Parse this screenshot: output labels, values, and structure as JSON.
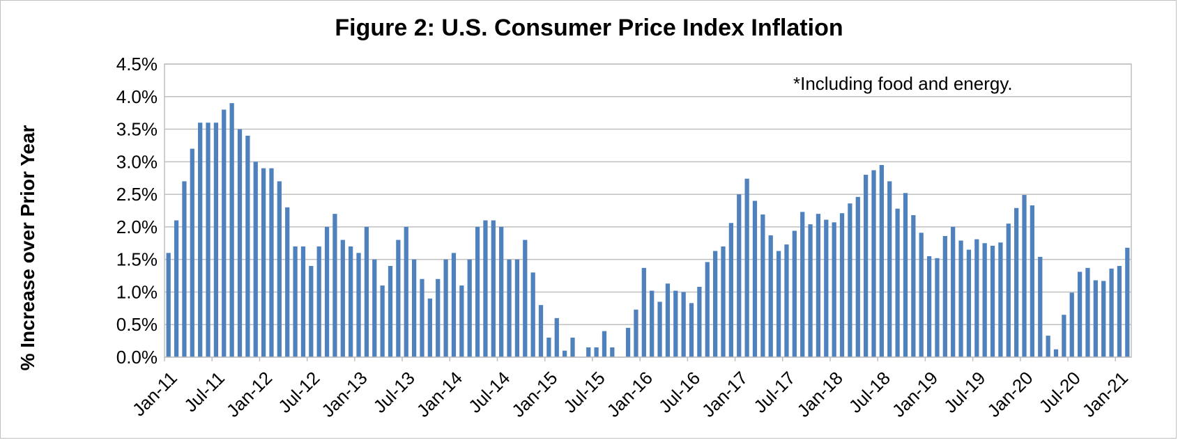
{
  "colors": {
    "bar": "#4f81bd",
    "grid": "#bfbfbf"
  },
  "chart_data": {
    "type": "bar",
    "title": "Figure 2: U.S. Consumer Price Index Inflation",
    "xlabel": "",
    "ylabel": "% Increase over Prior Year",
    "annotation": "*Including food and energy.",
    "ylim": [
      0,
      4.5
    ],
    "y_ticks": [
      "0.0%",
      "0.5%",
      "1.0%",
      "1.5%",
      "2.0%",
      "2.5%",
      "3.0%",
      "3.5%",
      "4.0%",
      "4.5%"
    ],
    "x_tick_labels": [
      "Jan-11",
      "Jul-11",
      "Jan-12",
      "Jul-12",
      "Jan-13",
      "Jul-13",
      "Jan-14",
      "Jul-14",
      "Jan-15",
      "Jul-15",
      "Jan-16",
      "Jul-16",
      "Jan-17",
      "Jul-17",
      "Jan-18",
      "Jul-18",
      "Jan-19",
      "Jul-19",
      "Jan-20",
      "Jul-20",
      "Jan-21"
    ],
    "grid": true,
    "legend": "none",
    "start": "Jan-11",
    "values": [
      1.6,
      2.1,
      2.7,
      3.2,
      3.6,
      3.6,
      3.6,
      3.8,
      3.9,
      3.5,
      3.4,
      3.0,
      2.9,
      2.9,
      2.7,
      2.3,
      1.7,
      1.7,
      1.4,
      1.7,
      2.0,
      2.2,
      1.8,
      1.7,
      1.6,
      2.0,
      1.5,
      1.1,
      1.4,
      1.8,
      2.0,
      1.5,
      1.2,
      0.9,
      1.2,
      1.5,
      1.6,
      1.1,
      1.5,
      2.0,
      2.1,
      2.1,
      2.0,
      1.5,
      1.5,
      1.8,
      1.3,
      0.8,
      0.3,
      0.6,
      0.1,
      0.3,
      0.0,
      0.15,
      0.15,
      0.4,
      0.15,
      0.0,
      0.45,
      0.73,
      1.37,
      1.02,
      0.85,
      1.13,
      1.02,
      1.0,
      0.83,
      1.08,
      1.46,
      1.63,
      1.7,
      2.06,
      2.5,
      2.74,
      2.4,
      2.19,
      1.87,
      1.63,
      1.73,
      1.94,
      2.23,
      2.04,
      2.2,
      2.11,
      2.07,
      2.21,
      2.36,
      2.46,
      2.8,
      2.87,
      2.95,
      2.7,
      2.28,
      2.52,
      2.18,
      1.91,
      1.55,
      1.52,
      1.86,
      2.0,
      1.79,
      1.65,
      1.81,
      1.75,
      1.71,
      1.76,
      2.05,
      2.29,
      2.49,
      2.33,
      1.54,
      0.33,
      0.12,
      0.65,
      0.99,
      1.31,
      1.37,
      1.18,
      1.17,
      1.36,
      1.4,
      1.68
    ]
  }
}
